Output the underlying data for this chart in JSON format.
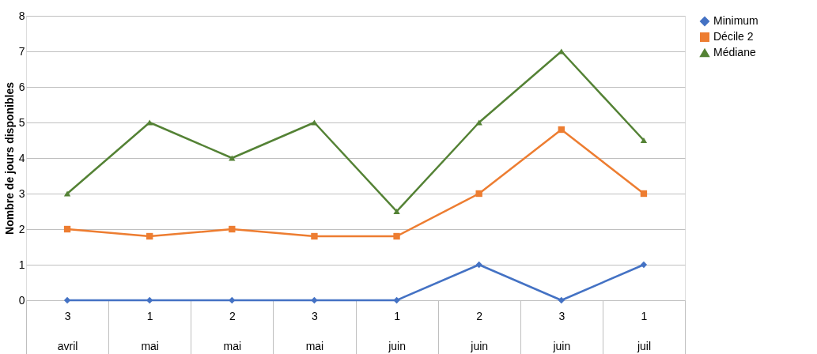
{
  "chart_data": {
    "type": "line",
    "ylabel": "Nombre de jours disponibles",
    "categories": [
      "3 avril",
      "1 mai",
      "2 mai",
      "3 mai",
      "1 juin",
      "2 juin",
      "3 juin",
      "1 juil"
    ],
    "series": [
      {
        "name": "Minimum",
        "color": "#4472c4",
        "marker": "diamond",
        "values": [
          0,
          0,
          0,
          0,
          0,
          1,
          0,
          1
        ]
      },
      {
        "name": "Décile 2",
        "color": "#ed7d31",
        "marker": "square",
        "values": [
          2,
          1.8,
          2,
          1.8,
          1.8,
          3,
          4.8,
          3
        ]
      },
      {
        "name": "Médiane",
        "color": "#548235",
        "marker": "triangle",
        "values": [
          3,
          5,
          4,
          5,
          2.5,
          5,
          7,
          4.5
        ]
      }
    ],
    "ylim": [
      0,
      8
    ],
    "yticks": [
      0,
      1,
      2,
      3,
      4,
      5,
      6,
      7,
      8
    ],
    "grid": "y",
    "legend": "right",
    "line_style": "solid"
  }
}
